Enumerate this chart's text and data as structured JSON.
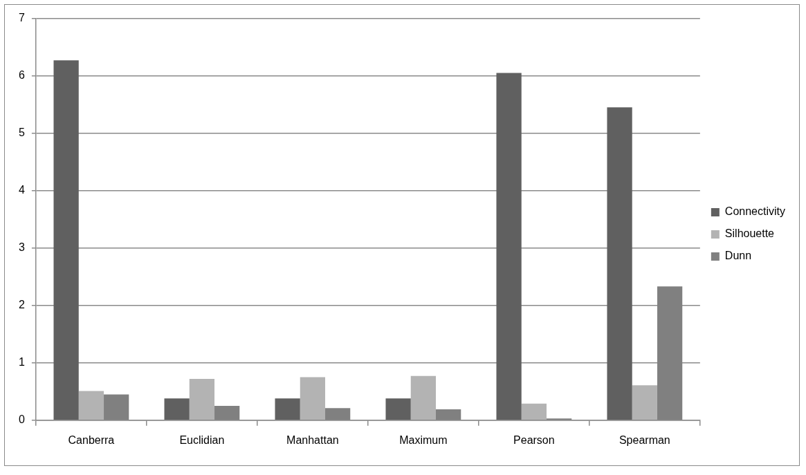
{
  "chart_data": {
    "type": "bar",
    "categories": [
      "Canberra",
      "Euclidian",
      "Manhattan",
      "Maximum",
      "Pearson",
      "Spearman"
    ],
    "series": [
      {
        "name": "Connectivity",
        "color": "#606060",
        "values": [
          6.27,
          0.38,
          0.38,
          0.38,
          6.05,
          5.45
        ]
      },
      {
        "name": "Silhouette",
        "color": "#b3b3b3",
        "values": [
          0.51,
          0.72,
          0.75,
          0.77,
          0.29,
          0.61
        ]
      },
      {
        "name": "Dunn",
        "color": "#808080",
        "values": [
          0.45,
          0.25,
          0.21,
          0.19,
          0.03,
          2.33
        ]
      }
    ],
    "ylim": [
      0,
      7
    ],
    "yticks": [
      0,
      1,
      2,
      3,
      4,
      5,
      6,
      7
    ],
    "grid": "y",
    "legend": "right"
  }
}
